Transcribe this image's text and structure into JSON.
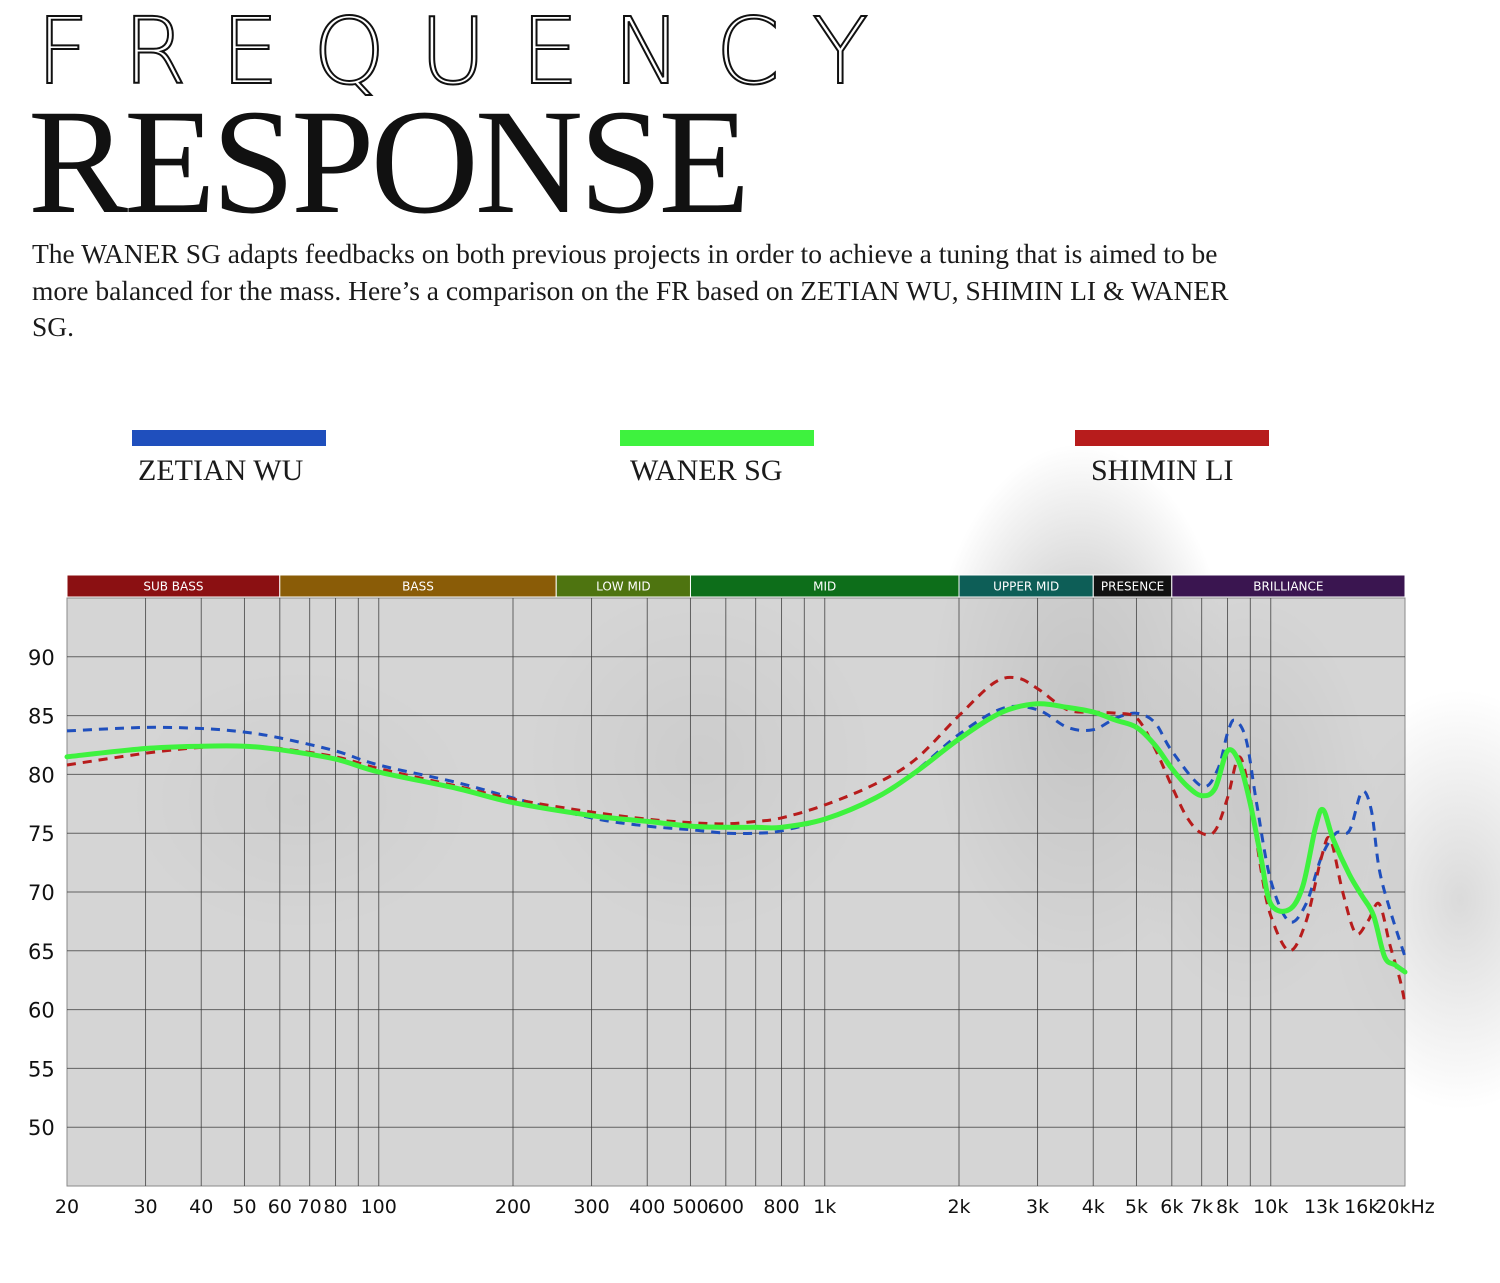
{
  "header": {
    "title_line1": "FREQUENCY",
    "title_line2": "RESPONSE",
    "description": "The WANER SG adapts feedbacks on both previous projects in order to achieve a tuning that is aimed to be more balanced for the mass. Here’s a comparison on the FR based on ZETIAN WU, SHIMIN LI & WANER SG."
  },
  "legend": [
    {
      "label": "ZETIAN WU",
      "color": "#1f4fbd"
    },
    {
      "label": "WANER SG",
      "color": "#3ef23e"
    },
    {
      "label": "SHIMIN LI",
      "color": "#b71c1c"
    }
  ],
  "chart_data": {
    "type": "line",
    "x_scale": "log",
    "xlim": [
      20,
      20000
    ],
    "ylim": [
      45,
      95
    ],
    "y_ticks": [
      90,
      85,
      80,
      75,
      70,
      65,
      60,
      55,
      50
    ],
    "x_ticks": [
      {
        "value": 20,
        "label": "20"
      },
      {
        "value": 30,
        "label": "30"
      },
      {
        "value": 40,
        "label": "40"
      },
      {
        "value": 50,
        "label": "50"
      },
      {
        "value": 60,
        "label": "60"
      },
      {
        "value": 70,
        "label": "70"
      },
      {
        "value": 80,
        "label": "80"
      },
      {
        "value": 100,
        "label": "100"
      },
      {
        "value": 200,
        "label": "200"
      },
      {
        "value": 300,
        "label": "300"
      },
      {
        "value": 400,
        "label": "400"
      },
      {
        "value": 500,
        "label": "500"
      },
      {
        "value": 600,
        "label": "600"
      },
      {
        "value": 800,
        "label": "800"
      },
      {
        "value": 1000,
        "label": "1k"
      },
      {
        "value": 2000,
        "label": "2k"
      },
      {
        "value": 3000,
        "label": "3k"
      },
      {
        "value": 4000,
        "label": "4k"
      },
      {
        "value": 5000,
        "label": "5k"
      },
      {
        "value": 6000,
        "label": "6k"
      },
      {
        "value": 7000,
        "label": "7k"
      },
      {
        "value": 8000,
        "label": "8k"
      },
      {
        "value": 10000,
        "label": "10k"
      },
      {
        "value": 13000,
        "label": "13k"
      },
      {
        "value": 16000,
        "label": "16k"
      },
      {
        "value": 20000,
        "label": "20kHz"
      }
    ],
    "grid_freqs": [
      30,
      40,
      50,
      60,
      70,
      80,
      90,
      100,
      200,
      300,
      400,
      500,
      600,
      700,
      800,
      900,
      1000,
      2000,
      3000,
      4000,
      5000,
      6000,
      7000,
      8000,
      9000,
      10000
    ],
    "bands": [
      {
        "label": "SUB BASS",
        "from": 20,
        "to": 60,
        "color": "#8b1012"
      },
      {
        "label": "BASS",
        "from": 60,
        "to": 250,
        "color": "#8a5c07"
      },
      {
        "label": "LOW MID",
        "from": 250,
        "to": 500,
        "color": "#4e7410"
      },
      {
        "label": "MID",
        "from": 500,
        "to": 2000,
        "color": "#0d6e1a"
      },
      {
        "label": "UPPER MID",
        "from": 2000,
        "to": 4000,
        "color": "#0d5e57"
      },
      {
        "label": "PRESENCE",
        "from": 4000,
        "to": 6000,
        "color": "#111111"
      },
      {
        "label": "BRILLIANCE",
        "from": 6000,
        "to": 20000,
        "color": "#3a1550"
      }
    ],
    "series": [
      {
        "name": "ZETIAN WU",
        "color": "#1f4fbd",
        "dashed": true,
        "points": [
          [
            20,
            83.7
          ],
          [
            30,
            84.0
          ],
          [
            40,
            83.9
          ],
          [
            50,
            83.6
          ],
          [
            60,
            83.1
          ],
          [
            80,
            82.0
          ],
          [
            100,
            80.8
          ],
          [
            150,
            79.3
          ],
          [
            200,
            78.0
          ],
          [
            300,
            76.3
          ],
          [
            400,
            75.6
          ],
          [
            500,
            75.3
          ],
          [
            600,
            75.0
          ],
          [
            700,
            75.0
          ],
          [
            800,
            75.2
          ],
          [
            1000,
            76.2
          ],
          [
            1300,
            78.0
          ],
          [
            1600,
            80.3
          ],
          [
            2000,
            83.4
          ],
          [
            2500,
            85.6
          ],
          [
            3000,
            85.5
          ],
          [
            3500,
            84.0
          ],
          [
            4000,
            83.8
          ],
          [
            4500,
            84.8
          ],
          [
            5000,
            85.2
          ],
          [
            5500,
            84.4
          ],
          [
            6000,
            82.0
          ],
          [
            7000,
            79.0
          ],
          [
            7600,
            80.4
          ],
          [
            8000,
            83.5
          ],
          [
            8300,
            84.6
          ],
          [
            8800,
            83.0
          ],
          [
            9300,
            77.5
          ],
          [
            10000,
            71.0
          ],
          [
            11000,
            67.5
          ],
          [
            12000,
            69.0
          ],
          [
            13000,
            73.0
          ],
          [
            14000,
            75.0
          ],
          [
            15000,
            75.2
          ],
          [
            16000,
            78.5
          ],
          [
            16800,
            77.0
          ],
          [
            17500,
            72.0
          ],
          [
            18500,
            68.5
          ],
          [
            20000,
            64.5
          ]
        ]
      },
      {
        "name": "WANER SG",
        "color": "#3ef23e",
        "dashed": false,
        "points": [
          [
            20,
            81.5
          ],
          [
            30,
            82.2
          ],
          [
            40,
            82.4
          ],
          [
            50,
            82.4
          ],
          [
            60,
            82.1
          ],
          [
            80,
            81.3
          ],
          [
            100,
            80.2
          ],
          [
            150,
            78.8
          ],
          [
            200,
            77.6
          ],
          [
            300,
            76.5
          ],
          [
            400,
            76.0
          ],
          [
            500,
            75.6
          ],
          [
            600,
            75.5
          ],
          [
            700,
            75.5
          ],
          [
            800,
            75.5
          ],
          [
            1000,
            76.2
          ],
          [
            1300,
            78.0
          ],
          [
            1600,
            80.2
          ],
          [
            2000,
            83.0
          ],
          [
            2500,
            85.3
          ],
          [
            3000,
            86.0
          ],
          [
            3500,
            85.7
          ],
          [
            4000,
            85.3
          ],
          [
            4500,
            84.6
          ],
          [
            5000,
            84.0
          ],
          [
            5500,
            82.5
          ],
          [
            6000,
            80.5
          ],
          [
            6500,
            79.0
          ],
          [
            7000,
            78.2
          ],
          [
            7500,
            78.8
          ],
          [
            8000,
            82.0
          ],
          [
            8500,
            81.0
          ],
          [
            9000,
            77.5
          ],
          [
            9500,
            73.0
          ],
          [
            10000,
            69.0
          ],
          [
            11000,
            68.5
          ],
          [
            11800,
            70.5
          ],
          [
            12600,
            75.5
          ],
          [
            13100,
            77.0
          ],
          [
            13800,
            74.5
          ],
          [
            15000,
            71.5
          ],
          [
            16000,
            69.7
          ],
          [
            17000,
            68.0
          ],
          [
            18000,
            64.5
          ],
          [
            19000,
            63.8
          ],
          [
            20000,
            63.2
          ]
        ]
      },
      {
        "name": "SHIMIN LI",
        "color": "#b71c1c",
        "dashed": true,
        "points": [
          [
            20,
            80.8
          ],
          [
            30,
            81.8
          ],
          [
            40,
            82.3
          ],
          [
            50,
            82.4
          ],
          [
            60,
            82.2
          ],
          [
            80,
            81.5
          ],
          [
            100,
            80.5
          ],
          [
            150,
            79.0
          ],
          [
            200,
            77.9
          ],
          [
            300,
            76.8
          ],
          [
            400,
            76.2
          ],
          [
            500,
            75.9
          ],
          [
            600,
            75.8
          ],
          [
            700,
            76.0
          ],
          [
            800,
            76.3
          ],
          [
            1000,
            77.4
          ],
          [
            1300,
            79.2
          ],
          [
            1600,
            81.3
          ],
          [
            2000,
            85.0
          ],
          [
            2400,
            87.8
          ],
          [
            2700,
            88.2
          ],
          [
            3000,
            87.3
          ],
          [
            3500,
            85.5
          ],
          [
            4000,
            85.3
          ],
          [
            4500,
            85.2
          ],
          [
            5000,
            84.8
          ],
          [
            5500,
            82.2
          ],
          [
            6000,
            79.0
          ],
          [
            6500,
            76.3
          ],
          [
            7000,
            75.0
          ],
          [
            7500,
            75.2
          ],
          [
            8000,
            78.0
          ],
          [
            8500,
            81.5
          ],
          [
            9000,
            78.0
          ],
          [
            9500,
            72.0
          ],
          [
            10000,
            68.0
          ],
          [
            11000,
            65.0
          ],
          [
            12000,
            67.5
          ],
          [
            13000,
            73.0
          ],
          [
            13600,
            74.5
          ],
          [
            14500,
            70.0
          ],
          [
            15500,
            66.5
          ],
          [
            16500,
            67.5
          ],
          [
            17500,
            69.0
          ],
          [
            18500,
            65.5
          ],
          [
            19500,
            62.5
          ],
          [
            20000,
            60.5
          ]
        ]
      }
    ]
  }
}
